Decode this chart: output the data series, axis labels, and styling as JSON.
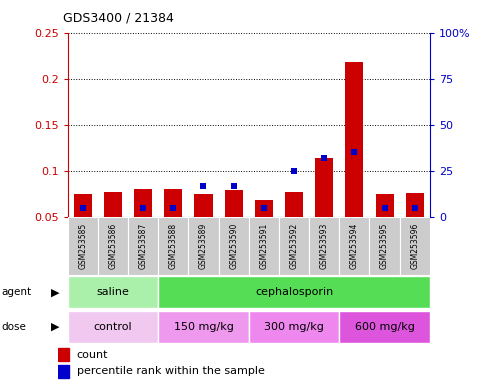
{
  "title": "GDS3400 / 21384",
  "samples": [
    "GSM253585",
    "GSM253586",
    "GSM253587",
    "GSM253588",
    "GSM253589",
    "GSM253590",
    "GSM253591",
    "GSM253592",
    "GSM253593",
    "GSM253594",
    "GSM253595",
    "GSM253596"
  ],
  "count_values": [
    0.075,
    0.077,
    0.08,
    0.08,
    0.075,
    0.079,
    0.068,
    0.077,
    0.114,
    0.218,
    0.075,
    0.076
  ],
  "percentile_values": [
    5,
    null,
    5,
    5,
    17,
    17,
    5,
    25,
    32,
    35,
    5,
    5
  ],
  "ylim_left": [
    0.05,
    0.25
  ],
  "ylim_right": [
    0,
    100
  ],
  "yticks_left": [
    0.05,
    0.1,
    0.15,
    0.2,
    0.25
  ],
  "yticks_right": [
    0,
    25,
    50,
    75,
    100
  ],
  "ytick_labels_left": [
    "0.05",
    "0.1",
    "0.15",
    "0.2",
    "0.25"
  ],
  "ytick_labels_right": [
    "0",
    "25",
    "50",
    "75",
    "100%"
  ],
  "agent_groups": [
    {
      "label": "saline",
      "start": 0,
      "end": 3,
      "color": "#aaf0aa"
    },
    {
      "label": "cephalosporin",
      "start": 3,
      "end": 12,
      "color": "#55dd55"
    }
  ],
  "dose_groups": [
    {
      "label": "control",
      "start": 0,
      "end": 3,
      "color": "#f0c8f0"
    },
    {
      "label": "150 mg/kg",
      "start": 3,
      "end": 6,
      "color": "#ee99ee"
    },
    {
      "label": "300 mg/kg",
      "start": 6,
      "end": 9,
      "color": "#ee88ee"
    },
    {
      "label": "600 mg/kg",
      "start": 9,
      "end": 12,
      "color": "#dd55dd"
    }
  ],
  "bar_color": "#cc0000",
  "dot_color": "#0000cc",
  "background_color": "#ffffff",
  "cell_color": "#cccccc",
  "grid_color": "#000000",
  "left_axis_color": "#cc0000",
  "right_axis_color": "#0000cc",
  "bar_bottom": 0.05
}
